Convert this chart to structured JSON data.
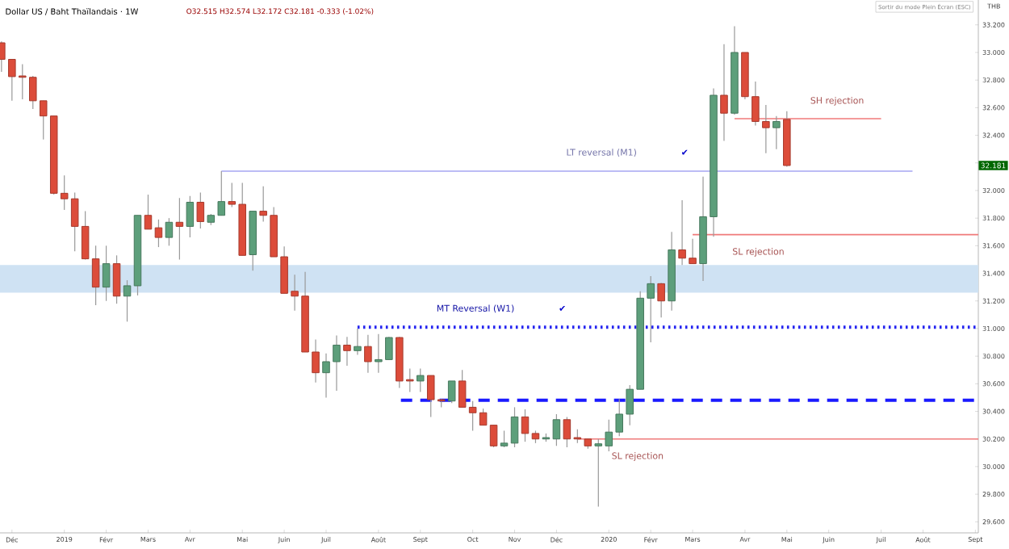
{
  "chart_data": {
    "type": "candlestick",
    "title": "Dollar US / Baht Thaïlandais · 1W",
    "subtitle": "O32.515 H32.574 L32.172 C32.181 -0.333 (-1.02%)",
    "ylabel": "THB",
    "xlim": [
      "2018-11-25",
      "2020-09-09"
    ],
    "ylim": [
      29.52,
      33.38
    ],
    "xticks": [
      {
        "value": "2018-12-03",
        "label": "Déc"
      },
      {
        "value": "2019-01-07",
        "label": "2019"
      },
      {
        "value": "2019-02-04",
        "label": "Févr"
      },
      {
        "value": "2019-03-04",
        "label": "Mars"
      },
      {
        "value": "2019-04-01",
        "label": "Avr"
      },
      {
        "value": "2019-05-06",
        "label": "Mai"
      },
      {
        "value": "2019-06-03",
        "label": "Juin"
      },
      {
        "value": "2019-07-01",
        "label": "Juil"
      },
      {
        "value": "2019-08-05",
        "label": "Août"
      },
      {
        "value": "2019-09-02",
        "label": "Sept"
      },
      {
        "value": "2019-10-07",
        "label": "Oct"
      },
      {
        "value": "2019-11-04",
        "label": "Nov"
      },
      {
        "value": "2019-12-02",
        "label": "Déc"
      },
      {
        "value": "2020-01-06",
        "label": "2020"
      },
      {
        "value": "2020-02-03",
        "label": "Févr"
      },
      {
        "value": "2020-03-02",
        "label": "Mars"
      },
      {
        "value": "2020-04-06",
        "label": "Avr"
      },
      {
        "value": "2020-05-04",
        "label": "Mai"
      },
      {
        "value": "2020-06-01",
        "label": "Juin"
      },
      {
        "value": "2020-07-06",
        "label": "Juil"
      },
      {
        "value": "2020-08-03",
        "label": "Août"
      },
      {
        "value": "2020-09-07",
        "label": "Sept"
      }
    ],
    "yticks": [
      {
        "value": 29.6,
        "label": "29.600"
      },
      {
        "value": 29.8,
        "label": "29.800"
      },
      {
        "value": 30.0,
        "label": "30.000"
      },
      {
        "value": 30.2,
        "label": "30.200"
      },
      {
        "value": 30.4,
        "label": "30.400"
      },
      {
        "value": 30.6,
        "label": "30.600"
      },
      {
        "value": 30.8,
        "label": "30.800"
      },
      {
        "value": 31.0,
        "label": "31.000"
      },
      {
        "value": 31.2,
        "label": "31.200"
      },
      {
        "value": 31.4,
        "label": "31.400"
      },
      {
        "value": 31.6,
        "label": "31.600"
      },
      {
        "value": 31.8,
        "label": "31.800"
      },
      {
        "value": 32.0,
        "label": "32.000"
      },
      {
        "value": 32.2,
        "label": null
      },
      {
        "value": 32.4,
        "label": "32.400"
      },
      {
        "value": 32.6,
        "label": "32.600"
      },
      {
        "value": 32.8,
        "label": "32.800"
      },
      {
        "value": 33.0,
        "label": "33.000"
      },
      {
        "value": 33.2,
        "label": "33.200"
      }
    ],
    "x": [
      "2018-11-26",
      "2018-12-03",
      "2018-12-10",
      "2018-12-17",
      "2018-12-24",
      "2018-12-31",
      "2019-01-07",
      "2019-01-14",
      "2019-01-21",
      "2019-01-28",
      "2019-02-04",
      "2019-02-11",
      "2019-02-18",
      "2019-02-25",
      "2019-03-04",
      "2019-03-11",
      "2019-03-18",
      "2019-03-25",
      "2019-04-01",
      "2019-04-08",
      "2019-04-15",
      "2019-04-22",
      "2019-04-29",
      "2019-05-06",
      "2019-05-13",
      "2019-05-20",
      "2019-05-27",
      "2019-06-03",
      "2019-06-10",
      "2019-06-17",
      "2019-06-24",
      "2019-07-01",
      "2019-07-08",
      "2019-07-15",
      "2019-07-22",
      "2019-07-29",
      "2019-08-05",
      "2019-08-12",
      "2019-08-19",
      "2019-08-26",
      "2019-09-02",
      "2019-09-09",
      "2019-09-16",
      "2019-09-23",
      "2019-09-30",
      "2019-10-07",
      "2019-10-14",
      "2019-10-21",
      "2019-10-28",
      "2019-11-04",
      "2019-11-11",
      "2019-11-18",
      "2019-11-25",
      "2019-12-02",
      "2019-12-09",
      "2019-12-16",
      "2019-12-23",
      "2019-12-30",
      "2020-01-06",
      "2020-01-13",
      "2020-01-20",
      "2020-01-27",
      "2020-02-03",
      "2020-02-10",
      "2020-02-17",
      "2020-02-24",
      "2020-03-02",
      "2020-03-09",
      "2020-03-16",
      "2020-03-23",
      "2020-03-30",
      "2020-04-06",
      "2020-04-13",
      "2020-04-20",
      "2020-04-27",
      "2020-05-04"
    ],
    "ohlc": [
      [
        33.07,
        33.08,
        32.86,
        32.95
      ],
      [
        32.95,
        32.95,
        32.65,
        32.825
      ],
      [
        32.83,
        32.915,
        32.66,
        32.82
      ],
      [
        32.82,
        32.83,
        32.59,
        32.65
      ],
      [
        32.65,
        32.65,
        32.37,
        32.54
      ],
      [
        32.54,
        32.54,
        31.97,
        31.98
      ],
      [
        31.98,
        32.11,
        31.86,
        31.94
      ],
      [
        31.94,
        31.985,
        31.56,
        31.74
      ],
      [
        31.74,
        31.85,
        31.5,
        31.505
      ],
      [
        31.505,
        31.6,
        31.17,
        31.3
      ],
      [
        31.3,
        31.6,
        31.2,
        31.47
      ],
      [
        31.47,
        31.53,
        31.18,
        31.235
      ],
      [
        31.235,
        31.35,
        31.05,
        31.31
      ],
      [
        31.31,
        31.82,
        31.24,
        31.82
      ],
      [
        31.82,
        31.97,
        31.72,
        31.72
      ],
      [
        31.73,
        31.79,
        31.59,
        31.66
      ],
      [
        31.66,
        31.8,
        31.6,
        31.77
      ],
      [
        31.77,
        31.945,
        31.5,
        31.74
      ],
      [
        31.74,
        31.96,
        31.66,
        31.915
      ],
      [
        31.915,
        31.985,
        31.725,
        31.775
      ],
      [
        31.77,
        31.83,
        31.75,
        31.82
      ],
      [
        31.82,
        32.14,
        31.82,
        31.92
      ],
      [
        31.92,
        32.055,
        31.88,
        31.9
      ],
      [
        31.9,
        32.055,
        31.53,
        31.53
      ],
      [
        31.535,
        31.85,
        31.42,
        31.85
      ],
      [
        31.85,
        32.03,
        31.775,
        31.82
      ],
      [
        31.82,
        31.88,
        31.52,
        31.52
      ],
      [
        31.52,
        31.595,
        31.255,
        31.255
      ],
      [
        31.27,
        31.39,
        31.13,
        31.235
      ],
      [
        31.235,
        31.41,
        30.83,
        30.83
      ],
      [
        30.83,
        30.92,
        30.61,
        30.68
      ],
      [
        30.68,
        30.82,
        30.5,
        30.76
      ],
      [
        30.76,
        30.95,
        30.55,
        30.88
      ],
      [
        30.88,
        30.94,
        30.73,
        30.84
      ],
      [
        30.84,
        31.0,
        30.81,
        30.87
      ],
      [
        30.87,
        30.955,
        30.68,
        30.76
      ],
      [
        30.76,
        30.96,
        30.68,
        30.775
      ],
      [
        30.775,
        30.94,
        30.775,
        30.935
      ],
      [
        30.935,
        30.94,
        30.57,
        30.62
      ],
      [
        30.63,
        30.71,
        30.54,
        30.62
      ],
      [
        30.62,
        30.71,
        30.54,
        30.66
      ],
      [
        30.66,
        30.66,
        30.36,
        30.485
      ],
      [
        30.485,
        30.49,
        30.43,
        30.475
      ],
      [
        30.475,
        30.62,
        30.46,
        30.62
      ],
      [
        30.62,
        30.7,
        30.43,
        30.43
      ],
      [
        30.43,
        30.475,
        30.26,
        30.39
      ],
      [
        30.39,
        30.42,
        30.3,
        30.3
      ],
      [
        30.3,
        30.3,
        30.14,
        30.15
      ],
      [
        30.15,
        30.26,
        30.14,
        30.17
      ],
      [
        30.17,
        30.43,
        30.14,
        30.36
      ],
      [
        30.36,
        30.415,
        30.18,
        30.24
      ],
      [
        30.24,
        30.26,
        30.17,
        30.2
      ],
      [
        30.2,
        30.24,
        30.18,
        30.21
      ],
      [
        30.2,
        30.38,
        30.15,
        30.34
      ],
      [
        30.34,
        30.36,
        30.14,
        30.2
      ],
      [
        30.21,
        30.27,
        30.17,
        30.2
      ],
      [
        30.2,
        30.2,
        30.13,
        30.15
      ],
      [
        30.15,
        30.2,
        29.71,
        30.165
      ],
      [
        30.15,
        30.34,
        30.11,
        30.25
      ],
      [
        30.25,
        30.49,
        30.22,
        30.38
      ],
      [
        30.38,
        30.59,
        30.3,
        30.56
      ],
      [
        30.56,
        31.27,
        30.56,
        31.22
      ],
      [
        31.22,
        31.38,
        30.9,
        31.325
      ],
      [
        31.325,
        31.33,
        31.08,
        31.2
      ],
      [
        31.2,
        31.7,
        31.13,
        31.57
      ],
      [
        31.57,
        31.93,
        31.46,
        31.51
      ],
      [
        31.51,
        31.65,
        31.47,
        31.47
      ],
      [
        31.47,
        32.1,
        31.345,
        31.81
      ],
      [
        31.81,
        32.74,
        31.665,
        32.69
      ],
      [
        32.69,
        33.06,
        32.36,
        32.56
      ],
      [
        32.56,
        33.19,
        32.55,
        33.0
      ],
      [
        33.0,
        33.0,
        32.66,
        32.68
      ],
      [
        32.68,
        32.79,
        32.47,
        32.5
      ],
      [
        32.5,
        32.62,
        32.27,
        32.455
      ],
      [
        32.455,
        32.54,
        32.3,
        32.5
      ],
      [
        32.515,
        32.574,
        32.172,
        32.181
      ]
    ],
    "colors": [
      "#dc4c3a",
      "#dc4c3a",
      "#dc4c3a",
      "#dc4c3a",
      "#dc4c3a",
      "#dc4c3a",
      "#dc4c3a",
      "#dc4c3a",
      "#dc4c3a",
      "#dc4c3a",
      "#5d9f7b",
      "#dc4c3a",
      "#5d9f7b",
      "#5d9f7b",
      "#dc4c3a",
      "#dc4c3a",
      "#5d9f7b",
      "#dc4c3a",
      "#5d9f7b",
      "#dc4c3a",
      "#5d9f7b",
      "#5d9f7b",
      "#dc4c3a",
      "#dc4c3a",
      "#5d9f7b",
      "#dc4c3a",
      "#dc4c3a",
      "#dc4c3a",
      "#dc4c3a",
      "#dc4c3a",
      "#dc4c3a",
      "#5d9f7b",
      "#5d9f7b",
      "#dc4c3a",
      "#5d9f7b",
      "#dc4c3a",
      "#5d9f7b",
      "#5d9f7b",
      "#dc4c3a",
      "#dc4c3a",
      "#5d9f7b",
      "#dc4c3a",
      "#dc4c3a",
      "#5d9f7b",
      "#dc4c3a",
      "#dc4c3a",
      "#dc4c3a",
      "#dc4c3a",
      "#5d9f7b",
      "#5d9f7b",
      "#dc4c3a",
      "#dc4c3a",
      "#5d9f7b",
      "#5d9f7b",
      "#dc4c3a",
      "#dc4c3a",
      "#dc4c3a",
      "#5d9f7b",
      "#5d9f7b",
      "#5d9f7b",
      "#5d9f7b",
      "#5d9f7b",
      "#5d9f7b",
      "#dc4c3a",
      "#5d9f7b",
      "#dc4c3a",
      "#dc4c3a",
      "#5d9f7b",
      "#5d9f7b",
      "#dc4c3a",
      "#5d9f7b",
      "#dc4c3a",
      "#dc4c3a",
      "#dc4c3a",
      "#5d9f7b",
      "#dc4c3a"
    ],
    "series": [
      {
        "type": "line",
        "name": "LT reversal (M1)",
        "color": "#a6a6f2",
        "line_style": "solid",
        "x": [
          "2019-04-22",
          "2020-07-27"
        ],
        "values": [
          32.14,
          32.14
        ]
      },
      {
        "type": "line",
        "name": "MT Reversal (W1)",
        "color": "#2424f0",
        "line_style": "dotted",
        "x": [
          "2019-07-22",
          "2020-09-09"
        ],
        "values": [
          31.01,
          31.01
        ]
      },
      {
        "type": "line",
        "color": "#1a1aff",
        "line_style": "dashed",
        "x": [
          "2019-08-20",
          "2020-09-09"
        ],
        "values": [
          30.48,
          30.48
        ]
      },
      {
        "type": "line",
        "name": "SL rejection",
        "color": "#f07a7a",
        "line_style": "solid",
        "x": [
          "2019-12-16",
          "2020-09-09"
        ],
        "values": [
          30.2,
          30.2
        ]
      },
      {
        "type": "line",
        "name": "SL rejection",
        "color": "#f07a7a",
        "line_style": "solid",
        "x": [
          "2020-03-02",
          "2020-09-09"
        ],
        "values": [
          31.68,
          31.68
        ]
      },
      {
        "type": "line",
        "name": "SH rejection",
        "color": "#f07a7a",
        "line_style": "solid",
        "x": [
          "2020-03-30",
          "2020-07-06"
        ],
        "values": [
          32.52,
          32.52
        ]
      }
    ],
    "bands": [
      {
        "axis": "y",
        "from": 31.26,
        "to": 31.46,
        "color": "#cfe2f3"
      }
    ],
    "annotations": [
      "✔",
      "✔",
      "32.181",
      "Sortir du mode Plein Écran (ESC)"
    ]
  }
}
